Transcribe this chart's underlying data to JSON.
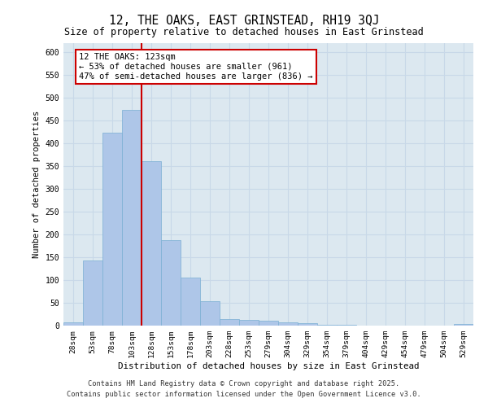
{
  "title1": "12, THE OAKS, EAST GRINSTEAD, RH19 3QJ",
  "title2": "Size of property relative to detached houses in East Grinstead",
  "xlabel": "Distribution of detached houses by size in East Grinstead",
  "ylabel": "Number of detached properties",
  "categories": [
    "28sqm",
    "53sqm",
    "78sqm",
    "103sqm",
    "128sqm",
    "153sqm",
    "178sqm",
    "203sqm",
    "228sqm",
    "253sqm",
    "279sqm",
    "304sqm",
    "329sqm",
    "354sqm",
    "379sqm",
    "404sqm",
    "429sqm",
    "454sqm",
    "479sqm",
    "504sqm",
    "529sqm"
  ],
  "values": [
    8,
    142,
    422,
    472,
    360,
    188,
    105,
    53,
    14,
    13,
    10,
    8,
    5,
    2,
    1,
    0,
    0,
    0,
    0,
    0,
    3
  ],
  "bar_color": "#aec6e8",
  "bar_edge_color": "#7aafd4",
  "grid_color": "#c8d8e8",
  "background_color": "#dce8f0",
  "vline_x_index": 3,
  "vline_color": "#cc0000",
  "annotation_text": "12 THE OAKS: 123sqm\n← 53% of detached houses are smaller (961)\n47% of semi-detached houses are larger (836) →",
  "annotation_box_color": "#ffffff",
  "annotation_box_edge": "#cc0000",
  "footer1": "Contains HM Land Registry data © Crown copyright and database right 2025.",
  "footer2": "Contains public sector information licensed under the Open Government Licence v3.0.",
  "ylim": [
    0,
    620
  ],
  "yticks": [
    0,
    50,
    100,
    150,
    200,
    250,
    300,
    350,
    400,
    450,
    500,
    550,
    600
  ]
}
